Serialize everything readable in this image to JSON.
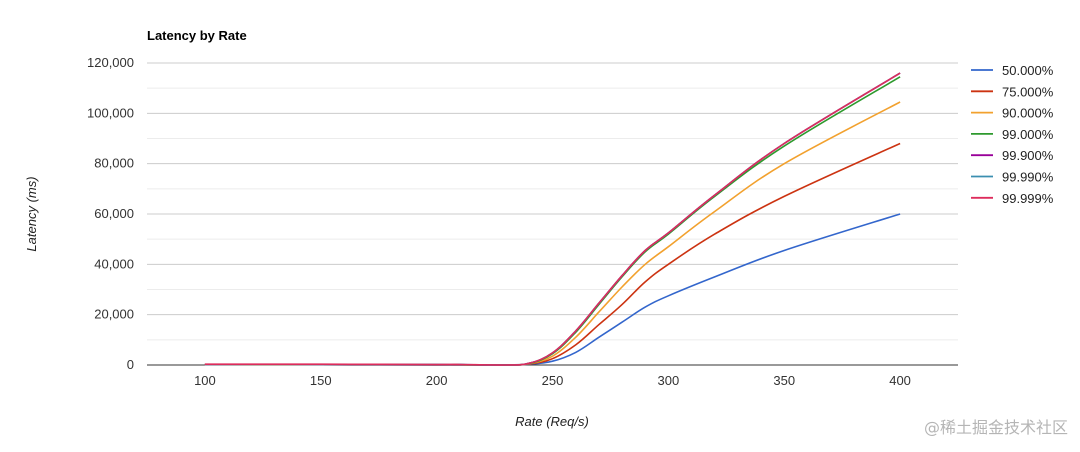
{
  "watermark": "@稀土掘金技术社区",
  "chart_data": {
    "type": "line",
    "title": "Latency by Rate",
    "xlabel": "Rate (Req/s)",
    "ylabel": "Latency (ms)",
    "xlim": [
      75,
      425
    ],
    "ylim": [
      0,
      120000
    ],
    "xticks": [
      100,
      150,
      200,
      250,
      300,
      350,
      400
    ],
    "yticks": [
      0,
      20000,
      40000,
      60000,
      80000,
      100000,
      120000
    ],
    "xtick_labels": [
      "100",
      "150",
      "200",
      "250",
      "300",
      "350",
      "400"
    ],
    "ytick_labels": [
      "0",
      "20,000",
      "40,000",
      "60,000",
      "80,000",
      "100,000",
      "120,000"
    ],
    "grid": true,
    "legend_position": "right",
    "x": [
      100,
      150,
      200,
      210,
      230,
      240,
      250,
      260,
      270,
      280,
      290,
      300,
      320,
      350,
      400
    ],
    "series": [
      {
        "name": "50.000%",
        "color": "#3366cc",
        "values": [
          100,
          100,
          50,
          50,
          0,
          300,
          1500,
          5000,
          11000,
          17000,
          23000,
          27500,
          35000,
          45500,
          60000
        ]
      },
      {
        "name": "75.000%",
        "color": "#cc3311",
        "values": [
          100,
          100,
          50,
          50,
          0,
          400,
          2500,
          8000,
          16000,
          24000,
          33000,
          40000,
          52000,
          67000,
          88000
        ]
      },
      {
        "name": "90.000%",
        "color": "#f2a12e",
        "values": [
          150,
          150,
          100,
          100,
          0,
          500,
          3500,
          11000,
          21000,
          31000,
          40000,
          47000,
          61000,
          80000,
          104500
        ]
      },
      {
        "name": "99.000%",
        "color": "#2e9a2e",
        "values": [
          200,
          200,
          100,
          100,
          0,
          600,
          4500,
          13000,
          24000,
          35000,
          45000,
          52000,
          67000,
          87000,
          114500
        ]
      },
      {
        "name": "99.900%",
        "color": "#990099",
        "values": [
          250,
          250,
          150,
          150,
          0,
          700,
          4800,
          13500,
          24500,
          35500,
          45500,
          52500,
          67500,
          88000,
          116000
        ]
      },
      {
        "name": "99.990%",
        "color": "#3b8fb0",
        "values": [
          250,
          250,
          150,
          150,
          0,
          700,
          4800,
          13500,
          24500,
          35500,
          45500,
          52500,
          67500,
          88000,
          116000
        ]
      },
      {
        "name": "99.999%",
        "color": "#dd2c5c",
        "values": [
          300,
          300,
          200,
          200,
          0,
          700,
          4800,
          13500,
          24500,
          35500,
          45500,
          52500,
          67500,
          88000,
          116000
        ]
      }
    ]
  }
}
